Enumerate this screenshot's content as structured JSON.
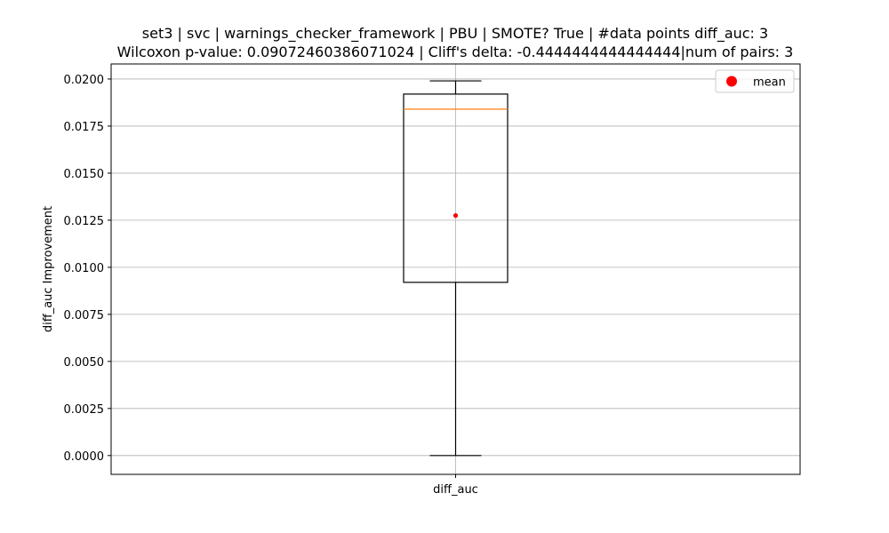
{
  "chart_data": {
    "type": "box",
    "title_line1": "set3 | svc | warnings_checker_framework | PBU | SMOTE? True | #data points diff_auc: 3",
    "title_line2": "Wilcoxon p-value: 0.09072460386071024 | Cliff's delta: -0.4444444444444444|num of pairs: 3",
    "xlabel": "",
    "ylabel": "diff_auc Improvement",
    "categories": [
      "diff_auc"
    ],
    "ylim": [
      -0.001,
      0.0208
    ],
    "yticks": [
      0.0,
      0.0025,
      0.005,
      0.0075,
      0.01,
      0.0125,
      0.015,
      0.0175,
      0.02
    ],
    "ytick_labels": [
      "0.0000",
      "0.0025",
      "0.0050",
      "0.0075",
      "0.0100",
      "0.0125",
      "0.0150",
      "0.0175",
      "0.0200"
    ],
    "grid": true,
    "box": {
      "whisker_low": 0.0,
      "q1": 0.0092,
      "median": 0.0184,
      "q3": 0.0192,
      "whisker_high": 0.0199,
      "mean": 0.01275
    },
    "legend": {
      "entries": [
        {
          "label": "mean",
          "color": "#ff0000"
        }
      ],
      "placement": "top-right"
    },
    "colors": {
      "box": "#000000",
      "median": "#ff7f0e",
      "mean": "#ff0000",
      "grid": "#b0b0b0"
    }
  }
}
